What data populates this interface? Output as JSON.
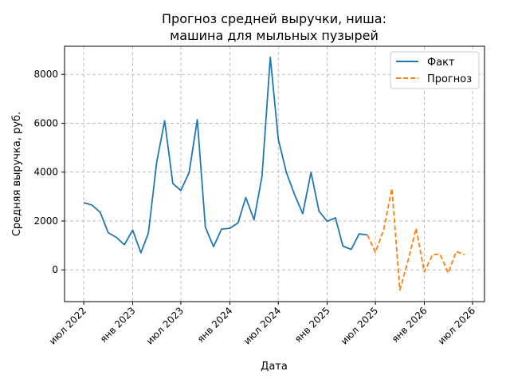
{
  "chart_data": {
    "type": "line",
    "title_lines": [
      "Прогноз средней выручки, ниша:",
      "машина для мыльных пузырей"
    ],
    "xlabel": "Дата",
    "ylabel": "Средняя выручка, руб.",
    "x_ticks": [
      {
        "date": "2022-07-01",
        "label": "июл 2022"
      },
      {
        "date": "2023-01-01",
        "label": "янв 2023"
      },
      {
        "date": "2023-07-01",
        "label": "июл 2023"
      },
      {
        "date": "2024-01-01",
        "label": "янв 2024"
      },
      {
        "date": "2024-07-01",
        "label": "июл 2024"
      },
      {
        "date": "2025-01-01",
        "label": "янв 2025"
      },
      {
        "date": "2025-07-01",
        "label": "июл 2025"
      },
      {
        "date": "2026-01-01",
        "label": "янв 2026"
      },
      {
        "date": "2026-07-01",
        "label": "июл 2026"
      }
    ],
    "xlim": [
      "2022-04-20",
      "2026-08-15"
    ],
    "y_ticks": [
      0,
      2000,
      4000,
      6000,
      8000
    ],
    "ylim": [
      -1300,
      9150
    ],
    "grid": true,
    "legend_position": "top-right",
    "colors": {
      "fact": "#1f77b4",
      "forecast": "#ff7f0e"
    },
    "series": [
      {
        "name": "Факт",
        "style": "solid",
        "points": [
          {
            "x": "2022-07-01",
            "y": 2750
          },
          {
            "x": "2022-08-01",
            "y": 2650
          },
          {
            "x": "2022-09-01",
            "y": 2350
          },
          {
            "x": "2022-10-01",
            "y": 1520
          },
          {
            "x": "2022-11-01",
            "y": 1330
          },
          {
            "x": "2022-12-01",
            "y": 1030
          },
          {
            "x": "2023-01-01",
            "y": 1630
          },
          {
            "x": "2023-02-01",
            "y": 700
          },
          {
            "x": "2023-03-01",
            "y": 1500
          },
          {
            "x": "2023-04-01",
            "y": 4400
          },
          {
            "x": "2023-05-01",
            "y": 6100
          },
          {
            "x": "2023-06-01",
            "y": 3530
          },
          {
            "x": "2023-07-01",
            "y": 3250
          },
          {
            "x": "2023-08-01",
            "y": 3980
          },
          {
            "x": "2023-09-01",
            "y": 6150
          },
          {
            "x": "2023-10-01",
            "y": 1750
          },
          {
            "x": "2023-11-01",
            "y": 950
          },
          {
            "x": "2023-12-01",
            "y": 1670
          },
          {
            "x": "2024-01-01",
            "y": 1700
          },
          {
            "x": "2024-02-01",
            "y": 1920
          },
          {
            "x": "2024-03-01",
            "y": 2960
          },
          {
            "x": "2024-04-01",
            "y": 2050
          },
          {
            "x": "2024-05-01",
            "y": 3830
          },
          {
            "x": "2024-06-01",
            "y": 8700
          },
          {
            "x": "2024-07-01",
            "y": 5350
          },
          {
            "x": "2024-08-01",
            "y": 3970
          },
          {
            "x": "2024-09-01",
            "y": 3060
          },
          {
            "x": "2024-10-01",
            "y": 2300
          },
          {
            "x": "2024-11-01",
            "y": 3990
          },
          {
            "x": "2024-12-01",
            "y": 2400
          },
          {
            "x": "2025-01-01",
            "y": 1990
          },
          {
            "x": "2025-02-01",
            "y": 2130
          },
          {
            "x": "2025-03-01",
            "y": 970
          },
          {
            "x": "2025-04-01",
            "y": 840
          },
          {
            "x": "2025-05-01",
            "y": 1470
          },
          {
            "x": "2025-06-01",
            "y": 1430
          }
        ]
      },
      {
        "name": "Прогноз",
        "style": "dashed",
        "points": [
          {
            "x": "2025-06-01",
            "y": 1430
          },
          {
            "x": "2025-07-01",
            "y": 720
          },
          {
            "x": "2025-08-01",
            "y": 1640
          },
          {
            "x": "2025-09-01",
            "y": 3330
          },
          {
            "x": "2025-10-01",
            "y": -830
          },
          {
            "x": "2025-11-01",
            "y": 400
          },
          {
            "x": "2025-12-01",
            "y": 1700
          },
          {
            "x": "2026-01-01",
            "y": -90
          },
          {
            "x": "2026-02-01",
            "y": 630
          },
          {
            "x": "2026-03-01",
            "y": 640
          },
          {
            "x": "2026-04-01",
            "y": -130
          },
          {
            "x": "2026-05-01",
            "y": 750
          },
          {
            "x": "2026-06-01",
            "y": 620
          }
        ]
      }
    ]
  }
}
